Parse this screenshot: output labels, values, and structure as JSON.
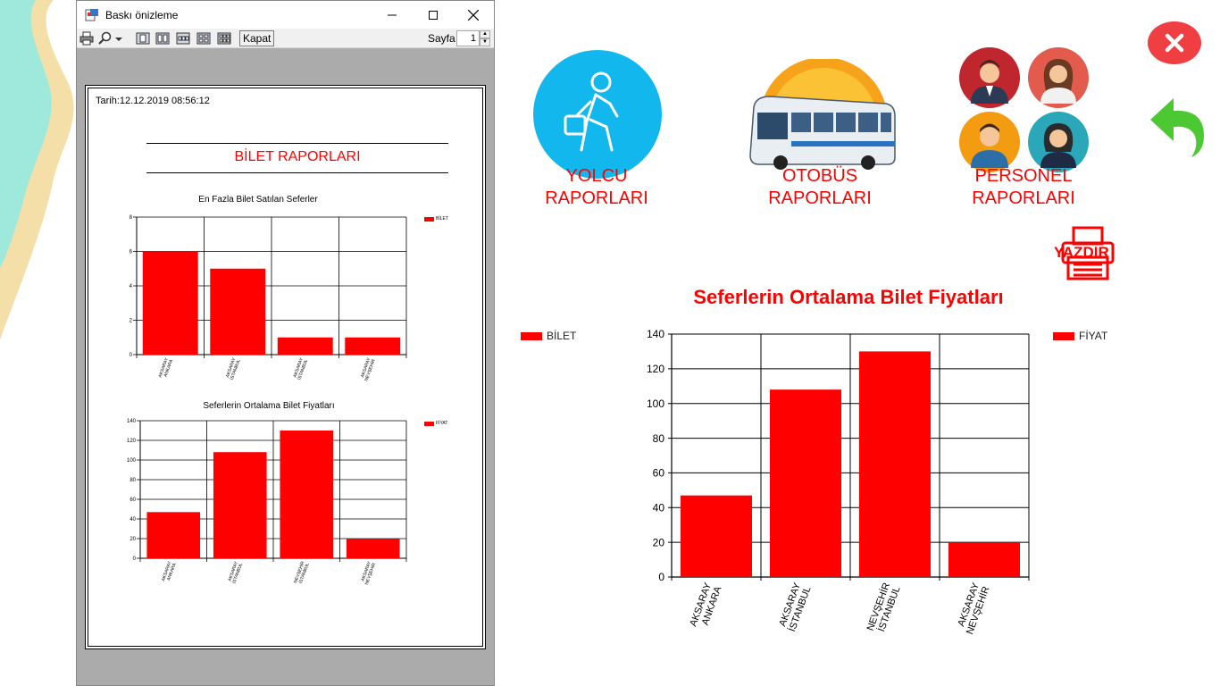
{
  "app": {
    "nav": {
      "yolcu": "YOLCU\nRAPORLARI",
      "otobus": "OTOBÜS\nRAPORLARI",
      "personel": "PERSONEL\nRAPORLARI"
    },
    "print_label": "YAZDIR",
    "main_chart": {
      "title": "Seferlerin Ortalama Bilet Fiyatları",
      "left_legend": "BİLET",
      "legend": "FİYAT"
    },
    "colors": {
      "accent": "#ff0000",
      "close": "#ef3f42",
      "back": "#4cc832",
      "yolcu_circle": "#12b7ee"
    },
    "icons": {
      "close": "close-icon",
      "back": "undo-arrow-icon",
      "print": "printer-icon"
    }
  },
  "preview": {
    "title": "Baskı önizleme",
    "toolbar": {
      "close_label": "Kapat",
      "page_label": "Sayfa",
      "page_value": "1"
    },
    "page": {
      "date": "Tarih:12.12.2019 08:56:12",
      "report_title": "BİLET RAPORLARI",
      "chart1_title": "En Fazla Bilet Satılan Seferler",
      "chart1_legend": "BİLET",
      "chart2_title": "Seferlerin Ortalama Bilet Fiyatları",
      "chart2_legend": "FİYAT"
    }
  },
  "chart_data": [
    {
      "type": "bar",
      "title": "Seferlerin Ortalama Bilet Fiyatları",
      "categories": [
        "AKSARAY\nANKARA",
        "AKSARAY\nİSTANBUL",
        "NEVŞEHİR\nİSTANBUL",
        "AKSARAY\nNEVŞEHİR"
      ],
      "series": [
        {
          "name": "FİYAT",
          "values": [
            47,
            108,
            130,
            20
          ]
        }
      ],
      "ylim": [
        0,
        140
      ],
      "yticks": [
        0,
        20,
        40,
        60,
        80,
        100,
        120,
        140
      ],
      "grid": true,
      "legend": "top-right"
    },
    {
      "type": "bar",
      "title": "En Fazla Bilet Satılan Seferler",
      "categories": [
        "AKSARAY\nANKARA",
        "AKSARAY\nİSTANBUL",
        "AKSARAY\nİSTANBUL",
        "AKSARAY\nNEVŞEHİR"
      ],
      "series": [
        {
          "name": "BİLET",
          "values": [
            6,
            5,
            1,
            1
          ]
        }
      ],
      "ylim": [
        0,
        8
      ],
      "yticks": [
        0,
        2,
        4,
        6,
        8
      ],
      "grid": true,
      "legend": "top-right"
    },
    {
      "type": "bar",
      "title": "Seferlerin Ortalama Bilet Fiyatları",
      "categories": [
        "AKSARAY\nANKARA",
        "AKSARAY\nİSTANBUL",
        "NEVŞEHİR\nİSTANBUL",
        "AKSARAY\nNEVŞEHİR"
      ],
      "series": [
        {
          "name": "FİYAT",
          "values": [
            47,
            108,
            130,
            20
          ]
        }
      ],
      "ylim": [
        0,
        140
      ],
      "yticks": [
        0,
        20,
        40,
        60,
        80,
        100,
        120,
        140
      ],
      "grid": true,
      "legend": "top-right"
    }
  ]
}
